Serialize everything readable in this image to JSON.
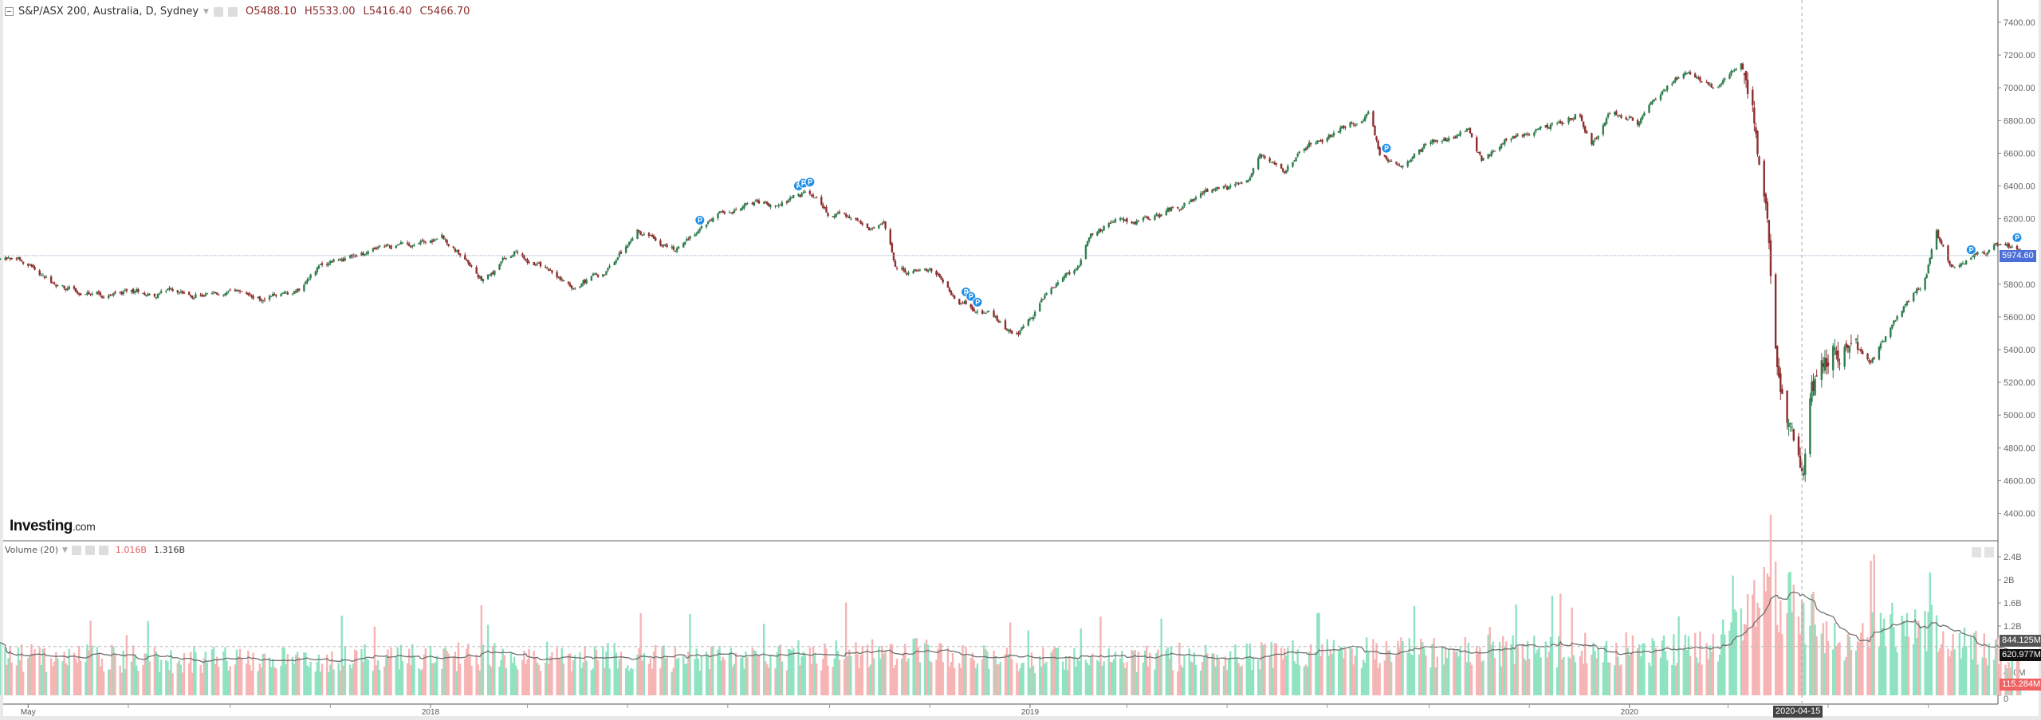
{
  "header": {
    "symbol": "S&P/ASX 200, Australia, D, Sydney",
    "open": "O5488.10",
    "high": "H5533.00",
    "low": "L5416.40",
    "close": "C5466.70"
  },
  "logo": {
    "brand": "Investing",
    "suffix": ".com"
  },
  "volume_header": {
    "title": "Volume (20)",
    "value1": "1.016B",
    "value2": "1.316B"
  },
  "labels": {
    "last_price": "5974.60",
    "volume_dashed": "844.125M",
    "volume_ma": "620.977M",
    "volume_last": "115.284M",
    "crosshair_date": "2020-04-15"
  },
  "colors": {
    "up_candle": "#2f7d4e",
    "down_candle": "#8e2f2f",
    "up_volume": "#8fe3c0",
    "down_volume": "#f6b4b4",
    "volume_ma": "#6f6f6f",
    "last_price_label": "#4a6fd8",
    "volume_last_label": "#f06262",
    "marker": "#1e8fe8"
  },
  "chart_data": {
    "type": "candlestick",
    "interval": "D",
    "y_ticks": [
      "7400.00",
      "7200.00",
      "7000.00",
      "6800.00",
      "6600.00",
      "6400.00",
      "6200.00",
      "5800.00",
      "5600.00",
      "5400.00",
      "5200.00",
      "5000.00",
      "4800.00",
      "4600.00",
      "4400.00"
    ],
    "y_tick_values": [
      7400,
      7200,
      7000,
      6800,
      6600,
      6400,
      6200,
      5800,
      5600,
      5400,
      5200,
      5000,
      4800,
      4600,
      4400
    ],
    "x_ticks": [
      "May",
      "2018",
      "2019",
      "2020"
    ],
    "x_tick_dates": [
      "2017-05-01",
      "2018-01-01",
      "2019-01-01",
      "2020-01-01"
    ],
    "volume_ticks": [
      "2.4B",
      "2B",
      "1.6B",
      "1.2B",
      "400M",
      "0"
    ],
    "volume_tick_values": [
      2.4,
      2.0,
      1.6,
      1.2,
      0.4,
      0
    ],
    "volume_unit": "B",
    "volume_ma_period": 20,
    "last_price": 5974.6,
    "volume_dashed_level": 0.844,
    "volume_ma_last": 0.621,
    "volume_last": 0.115,
    "crosshair_date": "2020-04-15",
    "approx_close_path": [
      [
        "2017-04-14",
        5950
      ],
      [
        "2017-04-30",
        5950
      ],
      [
        "2017-05-16",
        5780
      ],
      [
        "2017-06-08",
        5720
      ],
      [
        "2017-07-02",
        5750
      ],
      [
        "2017-08-11",
        5760
      ],
      [
        "2017-09-19",
        5700
      ],
      [
        "2017-10-13",
        5780
      ],
      [
        "2017-10-21",
        5900
      ],
      [
        "2017-11-14",
        5980
      ],
      [
        "2017-12-07",
        6020
      ],
      [
        "2018-01-08",
        6100
      ],
      [
        "2018-02-01",
        5850
      ],
      [
        "2018-02-24",
        6000
      ],
      [
        "2018-03-28",
        5780
      ],
      [
        "2018-04-21",
        5900
      ],
      [
        "2018-05-07",
        6120
      ],
      [
        "2018-05-30",
        6020
      ],
      [
        "2018-06-15",
        6150
      ],
      [
        "2018-07-01",
        6250
      ],
      [
        "2018-08-02",
        6300
      ],
      [
        "2018-08-17",
        6350
      ],
      [
        "2018-09-02",
        6200
      ],
      [
        "2018-10-04",
        6150
      ],
      [
        "2018-10-12",
        5900
      ],
      [
        "2018-11-05",
        5850
      ],
      [
        "2018-11-20",
        5700
      ],
      [
        "2018-12-06",
        5620
      ],
      [
        "2018-12-22",
        5480
      ],
      [
        "2018-12-30",
        5550
      ],
      [
        "2019-01-15",
        5800
      ],
      [
        "2019-01-31",
        5900
      ],
      [
        "2019-02-07",
        6150
      ],
      [
        "2019-03-11",
        6200
      ],
      [
        "2019-03-27",
        6250
      ],
      [
        "2019-04-20",
        6350
      ],
      [
        "2019-05-13",
        6400
      ],
      [
        "2019-05-21",
        6550
      ],
      [
        "2019-06-06",
        6500
      ],
      [
        "2019-06-22",
        6650
      ],
      [
        "2019-07-08",
        6750
      ],
      [
        "2019-07-27",
        6850
      ],
      [
        "2019-08-02",
        6600
      ],
      [
        "2019-08-16",
        6500
      ],
      [
        "2019-09-01",
        6650
      ],
      [
        "2019-09-25",
        6750
      ],
      [
        "2019-10-03",
        6550
      ],
      [
        "2019-10-19",
        6700
      ],
      [
        "2019-11-11",
        6750
      ],
      [
        "2019-12-01",
        6850
      ],
      [
        "2019-12-09",
        6650
      ],
      [
        "2019-12-21",
        6850
      ],
      [
        "2020-01-06",
        6800
      ],
      [
        "2020-01-14",
        6950
      ],
      [
        "2020-02-06",
        7100
      ],
      [
        "2020-02-22",
        7000
      ],
      [
        "2020-03-09",
        7150
      ],
      [
        "2020-03-17",
        6800
      ],
      [
        "2020-03-25",
        6200
      ],
      [
        "2020-03-29",
        5500
      ],
      [
        "2020-04-06",
        5000
      ],
      [
        "2020-04-16",
        4550
      ],
      [
        "2020-04-21",
        5050
      ],
      [
        "2020-05-03",
        5300
      ],
      [
        "2020-05-11",
        5500
      ],
      [
        "2020-05-27",
        5300
      ],
      [
        "2020-06-12",
        5600
      ],
      [
        "2020-06-28",
        5800
      ],
      [
        "2020-07-06",
        6100
      ],
      [
        "2020-07-14",
        5900
      ],
      [
        "2020-07-29",
        5950
      ],
      [
        "2020-08-14",
        6050
      ],
      [
        "2020-08-26",
        5975
      ]
    ],
    "approx_volume_level_B": [
      [
        "2017-04-14",
        0.68
      ],
      [
        "2017-09-01",
        0.62
      ],
      [
        "2018-02-01",
        0.7
      ],
      [
        "2018-06-01",
        0.66
      ],
      [
        "2018-10-15",
        0.75
      ],
      [
        "2019-01-15",
        0.62
      ],
      [
        "2019-06-01",
        0.72
      ],
      [
        "2019-12-01",
        0.8
      ],
      [
        "2020-02-20",
        0.85
      ],
      [
        "2020-03-12",
        1.3
      ],
      [
        "2020-03-28",
        1.9
      ],
      [
        "2020-04-14",
        1.5
      ],
      [
        "2020-05-10",
        0.95
      ],
      [
        "2020-06-05",
        1.2
      ],
      [
        "2020-06-25",
        1.3
      ],
      [
        "2020-07-20",
        0.9
      ],
      [
        "2020-08-26",
        0.7
      ]
    ],
    "dividend_markers": [
      "2018-06-14",
      "2018-08-13",
      "2018-08-16",
      "2018-08-20",
      "2018-11-23",
      "2018-11-26",
      "2018-12-01",
      "2019-08-06",
      "2020-07-27",
      "2020-08-24"
    ]
  }
}
